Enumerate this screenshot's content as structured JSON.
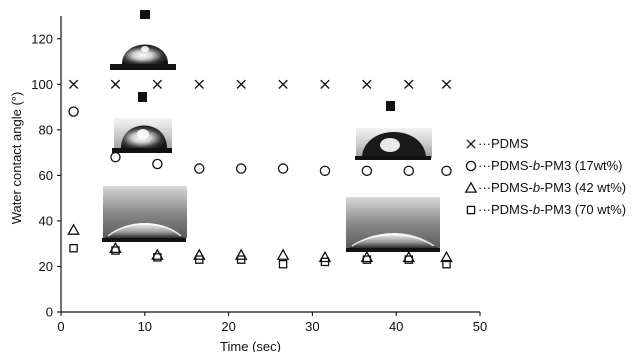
{
  "chart_data": {
    "type": "scatter",
    "title": "",
    "xlabel": "Time (sec)",
    "ylabel": "Water contact angle (°)",
    "xlim": [
      0,
      50
    ],
    "ylim": [
      0,
      130
    ],
    "xticks": [
      0,
      10,
      20,
      30,
      40,
      50
    ],
    "yticks": [
      0,
      20,
      40,
      60,
      80,
      100,
      120
    ],
    "grid": false,
    "legend_position": "right",
    "series": [
      {
        "name": "PDMS",
        "marker": "x",
        "x": [
          1.5,
          6.5,
          11.5,
          16.5,
          21.5,
          26.5,
          31.5,
          36.5,
          41.5,
          46
        ],
        "y": [
          100,
          100,
          100,
          100,
          100,
          100,
          100,
          100,
          100,
          100
        ]
      },
      {
        "name": "PDMS-b-PM3 (17wt%)",
        "name_parts": [
          "PDMS-",
          "b",
          "-PM3 (17wt%)"
        ],
        "marker": "circle",
        "x": [
          1.5,
          6.5,
          11.5,
          16.5,
          21.5,
          26.5,
          31.5,
          36.5,
          41.5,
          46
        ],
        "y": [
          88,
          68,
          65,
          63,
          63,
          63,
          62,
          62,
          62,
          62
        ]
      },
      {
        "name": "PDMS-b-PM3 (42 wt%)",
        "name_parts": [
          "PDMS-",
          "b",
          "-PM3 (42 wt%)"
        ],
        "marker": "triangle",
        "x": [
          1.5,
          6.5,
          11.5,
          16.5,
          21.5,
          26.5,
          31.5,
          36.5,
          41.5,
          46
        ],
        "y": [
          36,
          28,
          25,
          25,
          25,
          25,
          24,
          24,
          24,
          24
        ]
      },
      {
        "name": "PDMS-b-PM3 (70 wt%)",
        "name_parts": [
          "PDMS-",
          "b",
          "-PM3 (70 wt%)"
        ],
        "marker": "square",
        "x": [
          1.5,
          6.5,
          11.5,
          16.5,
          21.5,
          26.5,
          31.5,
          36.5,
          41.5,
          46
        ],
        "y": [
          28,
          27,
          24,
          23,
          23,
          21,
          22,
          23,
          23,
          21
        ]
      }
    ],
    "inset_photos": [
      {
        "description": "water droplet image",
        "series": "PDMS",
        "column": "t0"
      },
      {
        "description": "water droplet image",
        "series": "PDMS-b-PM3 (17wt%)",
        "column": "t0"
      },
      {
        "description": "water droplet image",
        "series": "PDMS-b-PM3 (42 wt%)",
        "column": "t0"
      },
      {
        "description": "water droplet image",
        "series": "PDMS-b-PM3 (17wt%)",
        "column": "t_end"
      },
      {
        "description": "water droplet image",
        "series": "PDMS-b-PM3 (42 wt%)",
        "column": "t_end"
      }
    ]
  },
  "legend_prefix": "···",
  "colors": {
    "ink": "#111111",
    "photo_light": "#e8e8e8",
    "photo_dark": "#3a3a3a",
    "stage": "#111111"
  }
}
